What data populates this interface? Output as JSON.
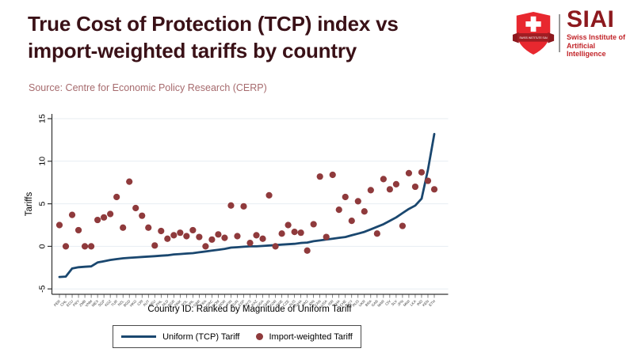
{
  "header": {
    "title_line1": "True Cost of Protection (TCP) index vs",
    "title_line2": "import-weighted tariffs by country",
    "source": "Source: Centre for Economic Policy Research (CERP)"
  },
  "logo": {
    "acronym": "SIAI",
    "org_line1": "Swiss Institute of",
    "org_line2": "Artificial Intelligence",
    "shield_color": "#e8282f",
    "ribbon_color": "#a01d22",
    "acronym_color": "#8d191e",
    "orgname_color": "#c2252a"
  },
  "colors": {
    "title": "#3a1117",
    "source": "#a66a6d",
    "grid": "#e7edf2",
    "axis": "#333333",
    "line": "#1a476f",
    "scatter": "#8f3a3c"
  },
  "chart_data": {
    "type": "line",
    "title": "",
    "xlabel": "Country ID: Ranked by Magnitude of Uniform Tariff",
    "ylabel": "Tariffs",
    "ylim": [
      -5.5,
      15.8
    ],
    "yticks": [
      -5,
      0,
      5,
      10,
      15
    ],
    "grid": true,
    "legend_position": "bottom",
    "categories": [
      "PER",
      "CHL",
      "ECU",
      "PRY",
      "ZMB",
      "VNM",
      "MEX",
      "SGP",
      "KGZ",
      "TUR",
      "NZL",
      "BGD",
      "HKG",
      "CRI",
      "AUT",
      "DEU",
      "PHL",
      "NLD",
      "BGR",
      "DNK",
      "POL",
      "IRL",
      "GBR",
      "FRA",
      "GRC",
      "DOM",
      "NOR",
      "FIN",
      "EUN",
      "ESP",
      "MYS",
      "KAZ",
      "UGA",
      "CHN",
      "KOR",
      "SWE",
      "CZE",
      "AUS",
      "GHA",
      "ARG",
      "IDN",
      "CAN",
      "USA",
      "ISR",
      "THA",
      "CHE",
      "EGY",
      "RUS",
      "UKR",
      "BRA",
      "GAB",
      "MAR",
      "CIV",
      "SLV",
      "JPN",
      "MWI",
      "LKA",
      "IND",
      "KEN",
      "ETH"
    ],
    "series": [
      {
        "name": "Uniform (TCP) Tariff",
        "type": "line",
        "color": "#1a476f",
        "values": [
          -3.6,
          -3.55,
          -2.6,
          -2.45,
          -2.4,
          -2.35,
          -1.9,
          -1.75,
          -1.6,
          -1.5,
          -1.4,
          -1.35,
          -1.3,
          -1.25,
          -1.2,
          -1.15,
          -1.1,
          -1.05,
          -0.95,
          -0.9,
          -0.85,
          -0.8,
          -0.7,
          -0.6,
          -0.5,
          -0.4,
          -0.3,
          -0.15,
          -0.1,
          -0.05,
          0,
          0,
          0.05,
          0.1,
          0.15,
          0.2,
          0.25,
          0.3,
          0.4,
          0.45,
          0.6,
          0.7,
          0.8,
          0.9,
          1.0,
          1.1,
          1.3,
          1.5,
          1.7,
          2.0,
          2.3,
          2.6,
          3.0,
          3.4,
          3.9,
          4.4,
          4.8,
          5.6,
          9.0,
          13.2
        ]
      },
      {
        "name": "Import-weighted Tariff",
        "type": "scatter",
        "color": "#8f3a3c",
        "values": [
          2.5,
          0.0,
          3.7,
          1.9,
          0.0,
          0.0,
          3.1,
          3.4,
          3.8,
          5.8,
          2.2,
          7.6,
          4.5,
          3.6,
          2.2,
          0.1,
          1.8,
          0.9,
          1.3,
          1.6,
          1.2,
          1.9,
          1.1,
          0.0,
          0.8,
          1.4,
          1.0,
          4.8,
          1.2,
          4.7,
          0.4,
          1.3,
          0.9,
          6.0,
          0.0,
          1.5,
          2.5,
          1.7,
          1.6,
          -0.5,
          2.6,
          8.2,
          1.1,
          8.4,
          4.3,
          5.8,
          3.0,
          5.3,
          4.1,
          6.6,
          1.5,
          7.9,
          6.7,
          7.3,
          2.4,
          8.6,
          7.0,
          8.7,
          7.7,
          6.7
        ]
      }
    ]
  }
}
